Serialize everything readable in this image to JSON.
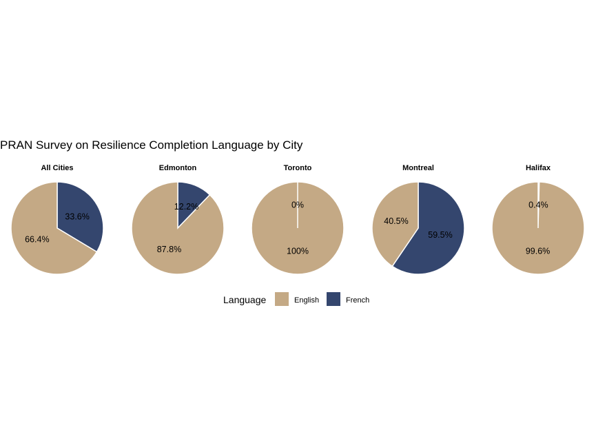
{
  "chart_data": {
    "type": "pie",
    "title": "PRAN Survey on Resilience Completion Language by City",
    "legend": {
      "title": "Language",
      "position": "bottom",
      "entries": [
        {
          "name": "English",
          "color": "#C4A985"
        },
        {
          "name": "French",
          "color": "#34466E"
        }
      ]
    },
    "facets": [
      {
        "city": "All  Cities",
        "values": [
          {
            "language": "English",
            "value": 66.4,
            "label": "66.4%"
          },
          {
            "language": "French",
            "value": 33.6,
            "label": "33.6%"
          }
        ]
      },
      {
        "city": "Edmonton",
        "values": [
          {
            "language": "English",
            "value": 87.8,
            "label": "87.8%"
          },
          {
            "language": "French",
            "value": 12.2,
            "label": "12.2%"
          }
        ]
      },
      {
        "city": "Toronto",
        "values": [
          {
            "language": "English",
            "value": 100,
            "label": "100%"
          },
          {
            "language": "French",
            "value": 0,
            "label": "0%"
          }
        ]
      },
      {
        "city": "Montreal",
        "values": [
          {
            "language": "English",
            "value": 40.5,
            "label": "40.5%"
          },
          {
            "language": "French",
            "value": 59.5,
            "label": "59.5%"
          }
        ]
      },
      {
        "city": "Halifax",
        "values": [
          {
            "language": "English",
            "value": 99.6,
            "label": "99.6%"
          },
          {
            "language": "French",
            "value": 0.4,
            "label": "0.4%"
          }
        ]
      }
    ]
  }
}
